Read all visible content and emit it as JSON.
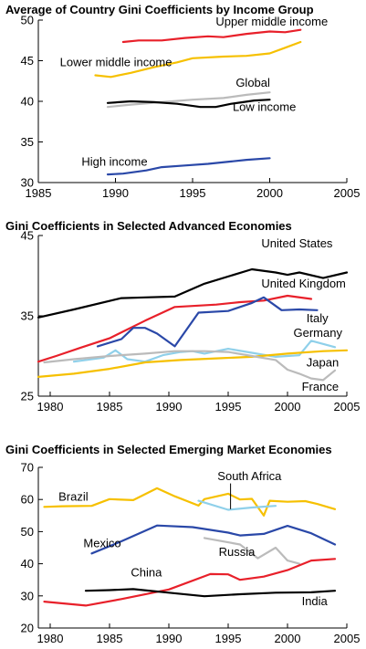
{
  "chart_data": [
    {
      "type": "line",
      "title": "Average of Country Gini Coefficients by Income Group",
      "xlim": [
        1985,
        2005
      ],
      "ylim": [
        30,
        50
      ],
      "xticks": [
        1985,
        1990,
        1995,
        2000,
        2005
      ],
      "yticks": [
        30,
        35,
        40,
        45,
        50
      ],
      "series": [
        {
          "name": "Upper middle income",
          "color": "#e8202a",
          "points": [
            [
              1990.5,
              47.3
            ],
            [
              1991.5,
              47.5
            ],
            [
              1993,
              47.5
            ],
            [
              1994.5,
              47.8
            ],
            [
              1996,
              48.0
            ],
            [
              1997,
              47.9
            ],
            [
              1998.5,
              48.3
            ],
            [
              2000,
              48.6
            ],
            [
              2001,
              48.5
            ],
            [
              2002,
              48.8
            ]
          ]
        },
        {
          "name": "Lower middle income",
          "color": "#f6c000",
          "points": [
            [
              1988.7,
              43.2
            ],
            [
              1989.7,
              43.0
            ],
            [
              1991,
              43.5
            ],
            [
              1992.5,
              44.2
            ],
            [
              1994,
              44.8
            ],
            [
              1995,
              45.3
            ],
            [
              1997,
              45.5
            ],
            [
              1998.5,
              45.6
            ],
            [
              2000,
              45.9
            ],
            [
              2001,
              46.6
            ],
            [
              2002,
              47.3
            ]
          ]
        },
        {
          "name": "Global",
          "color": "#bbbbbb",
          "points": [
            [
              1989.5,
              39.3
            ],
            [
              1991,
              39.6
            ],
            [
              1993,
              39.9
            ],
            [
              1995,
              40.2
            ],
            [
              1997,
              40.4
            ],
            [
              1998.5,
              40.8
            ],
            [
              2000,
              41.1
            ]
          ]
        },
        {
          "name": "Low income",
          "color": "#000000",
          "points": [
            [
              1989.5,
              39.8
            ],
            [
              1991,
              40.0
            ],
            [
              1992.5,
              39.9
            ],
            [
              1994,
              39.7
            ],
            [
              1995.5,
              39.3
            ],
            [
              1996.5,
              39.3
            ],
            [
              1997.5,
              39.7
            ],
            [
              1999,
              40.1
            ],
            [
              2000,
              40.2
            ]
          ]
        },
        {
          "name": "High income",
          "color": "#2a48a8",
          "points": [
            [
              1989.5,
              31.0
            ],
            [
              1990.5,
              31.1
            ],
            [
              1992,
              31.5
            ],
            [
              1993,
              31.9
            ],
            [
              1994.5,
              32.1
            ],
            [
              1996,
              32.3
            ],
            [
              1997.5,
              32.6
            ],
            [
              1998.5,
              32.8
            ],
            [
              2000,
              33.0
            ]
          ]
        }
      ],
      "labels": [
        {
          "series": "Upper middle income",
          "text": "Upper middle income",
          "x": 1996.5,
          "y": 49.3
        },
        {
          "series": "Lower middle income",
          "text": "Lower middle income",
          "x": 1986.4,
          "y": 44.3
        },
        {
          "series": "Global",
          "text": "Global",
          "x": 1997.8,
          "y": 41.8
        },
        {
          "series": "Low income",
          "text": "Low income",
          "x": 1997.6,
          "y": 38.8
        },
        {
          "series": "High income",
          "text": "High income",
          "x": 1987.8,
          "y": 32.1
        }
      ]
    },
    {
      "type": "line",
      "title": "Gini Coefficients in Selected Advanced Economies",
      "xlim": [
        1979,
        2005
      ],
      "ylim": [
        25,
        45
      ],
      "xticks": [
        1980,
        1985,
        1990,
        1995,
        2000,
        2005
      ],
      "yticks": [
        25,
        35,
        45
      ],
      "series": [
        {
          "name": "United States",
          "color": "#000000",
          "points": [
            [
              1979,
              34.8
            ],
            [
              1982,
              35.8
            ],
            [
              1986,
              37.2
            ],
            [
              1988,
              37.3
            ],
            [
              1990.5,
              37.4
            ],
            [
              1993,
              39.0
            ],
            [
              1997,
              40.8
            ],
            [
              1999,
              40.4
            ],
            [
              2000,
              40.1
            ],
            [
              2001,
              40.4
            ],
            [
              2003,
              39.7
            ],
            [
              2005,
              40.4
            ]
          ]
        },
        {
          "name": "United Kingdom",
          "color": "#e8202a",
          "points": [
            [
              1979,
              29.3
            ],
            [
              1980.5,
              30.0
            ],
            [
              1982.5,
              31.0
            ],
            [
              1985,
              32.2
            ],
            [
              1988,
              34.4
            ],
            [
              1990.5,
              36.1
            ],
            [
              1994,
              36.4
            ],
            [
              1996,
              36.7
            ],
            [
              1998,
              36.9
            ],
            [
              2000,
              37.5
            ],
            [
              2002,
              37.1
            ]
          ]
        },
        {
          "name": "Italy",
          "color": "#2a48a8",
          "points": [
            [
              1984,
              31.2
            ],
            [
              1986,
              32.1
            ],
            [
              1987,
              33.5
            ],
            [
              1988,
              33.5
            ],
            [
              1989,
              32.8
            ],
            [
              1990.5,
              31.2
            ],
            [
              1992.5,
              35.4
            ],
            [
              1995,
              35.6
            ],
            [
              1997,
              36.6
            ],
            [
              1998,
              37.3
            ],
            [
              1999.5,
              35.7
            ],
            [
              2001,
              35.8
            ],
            [
              2002.5,
              35.7
            ]
          ]
        },
        {
          "name": "Germany",
          "color": "#8fd0ea",
          "points": [
            [
              1982,
              29.3
            ],
            [
              1984.5,
              29.8
            ],
            [
              1985.5,
              30.7
            ],
            [
              1986.5,
              29.6
            ],
            [
              1988,
              29.3
            ],
            [
              1989.5,
              30.1
            ],
            [
              1991,
              30.5
            ],
            [
              1992,
              30.6
            ],
            [
              1993,
              30.3
            ],
            [
              1995,
              30.9
            ],
            [
              1997,
              30.4
            ],
            [
              1999,
              29.9
            ],
            [
              2001,
              30.1
            ],
            [
              2002,
              31.9
            ],
            [
              2004,
              31.1
            ]
          ]
        },
        {
          "name": "Japan",
          "color": "#f6c000",
          "points": [
            [
              1979,
              27.4
            ],
            [
              1982,
              27.8
            ],
            [
              1985,
              28.4
            ],
            [
              1988,
              29.2
            ],
            [
              1991,
              29.5
            ],
            [
              1994,
              29.7
            ],
            [
              1997,
              29.9
            ],
            [
              2000,
              30.3
            ],
            [
              2003,
              30.6
            ],
            [
              2005,
              30.7
            ]
          ]
        },
        {
          "name": "France",
          "color": "#bbbbbb",
          "points": [
            [
              1979.5,
              29.2
            ],
            [
              1982,
              29.6
            ],
            [
              1985,
              30.0
            ],
            [
              1988,
              30.3
            ],
            [
              1990.5,
              30.6
            ],
            [
              1993,
              30.6
            ],
            [
              1995,
              30.5
            ],
            [
              1997,
              30.0
            ],
            [
              1999,
              29.5
            ],
            [
              2000,
              28.3
            ],
            [
              2001,
              27.8
            ],
            [
              2002,
              27.2
            ],
            [
              2003,
              27.0
            ],
            [
              2004,
              28.2
            ]
          ]
        }
      ],
      "labels": [
        {
          "series": "United States",
          "text": "United States",
          "x": 1997.8,
          "y": 43.5
        },
        {
          "series": "United Kingdom",
          "text": "United Kingdom",
          "x": 1997.8,
          "y": 38.5
        },
        {
          "series": "Italy",
          "text": "Italy",
          "x": 2001.6,
          "y": 34.2
        },
        {
          "series": "Germany",
          "text": "Germany",
          "x": 2000.5,
          "y": 32.4
        },
        {
          "series": "Japan",
          "text": "Japan",
          "x": 2001.6,
          "y": 28.7
        },
        {
          "series": "France",
          "text": "France",
          "x": 2001.2,
          "y": 25.7
        }
      ]
    },
    {
      "type": "line",
      "title": "Gini Coefficients in Selected Emerging Market Economies",
      "xlim": [
        1979,
        2005
      ],
      "ylim": [
        20,
        70
      ],
      "xticks": [
        1980,
        1985,
        1990,
        1995,
        2000,
        2005
      ],
      "yticks": [
        20,
        30,
        40,
        50,
        60,
        70
      ],
      "series": [
        {
          "name": "Brazil",
          "color": "#f6c000",
          "points": [
            [
              1979.5,
              57.7
            ],
            [
              1981,
              57.9
            ],
            [
              1983.5,
              58.0
            ],
            [
              1985,
              60.1
            ],
            [
              1987,
              59.8
            ],
            [
              1989,
              63.5
            ],
            [
              1990.5,
              61.0
            ],
            [
              1992.5,
              58.1
            ],
            [
              1993,
              60.1
            ],
            [
              1995,
              61.8
            ],
            [
              1996,
              60.0
            ],
            [
              1997,
              60.2
            ],
            [
              1998,
              55.0
            ],
            [
              1998.5,
              59.6
            ],
            [
              2000,
              59.3
            ],
            [
              2001.5,
              59.5
            ],
            [
              2002.5,
              58.6
            ],
            [
              2004,
              57.0
            ]
          ]
        },
        {
          "name": "South Africa",
          "color": "#8fd0ea",
          "points": [
            [
              1992.5,
              59.6
            ],
            [
              1995,
              56.8
            ],
            [
              1997,
              57.5
            ],
            [
              1999,
              58.0
            ]
          ]
        },
        {
          "name": "Mexico",
          "color": "#2a48a8",
          "points": [
            [
              1983.5,
              43.2
            ],
            [
              1986,
              47.0
            ],
            [
              1989,
              51.9
            ],
            [
              1992,
              51.4
            ],
            [
              1995,
              49.7
            ],
            [
              1996,
              48.8
            ],
            [
              1998,
              49.3
            ],
            [
              2000,
              51.8
            ],
            [
              2002,
              49.5
            ],
            [
              2004,
              46.0
            ]
          ]
        },
        {
          "name": "Russia",
          "color": "#bbbbbb",
          "points": [
            [
              1993,
              48.0
            ],
            [
              1996,
              46.0
            ],
            [
              1997.5,
              41.7
            ],
            [
              1999,
              45.0
            ],
            [
              2000,
              41.0
            ],
            [
              2001,
              40.0
            ]
          ]
        },
        {
          "name": "China",
          "color": "#e8202a",
          "points": [
            [
              1979.5,
              28.2
            ],
            [
              1983,
              27.0
            ],
            [
              1986,
              29.0
            ],
            [
              1990,
              32.0
            ],
            [
              1993.5,
              36.8
            ],
            [
              1995,
              36.7
            ],
            [
              1996,
              35.0
            ],
            [
              1998,
              36.0
            ],
            [
              2000,
              38.0
            ],
            [
              2002,
              41.0
            ],
            [
              2004,
              41.5
            ]
          ]
        },
        {
          "name": "India",
          "color": "#000000",
          "points": [
            [
              1983,
              31.6
            ],
            [
              1985,
              31.8
            ],
            [
              1987,
              32.1
            ],
            [
              1990,
              31.0
            ],
            [
              1993,
              29.9
            ],
            [
              1996,
              30.5
            ],
            [
              1999,
              31.0
            ],
            [
              2002,
              31.1
            ],
            [
              2004,
              31.6
            ]
          ]
        }
      ],
      "labels": [
        {
          "series": "Brazil",
          "text": "Brazil",
          "x": 1980.7,
          "y": 59.6
        },
        {
          "series": "South Africa",
          "text": "South Africa",
          "x": 1994.1,
          "y": 66.0
        },
        {
          "series": "Mexico",
          "text": "Mexico",
          "x": 1982.8,
          "y": 45.1
        },
        {
          "series": "Russia",
          "text": "Russia",
          "x": 1994.2,
          "y": 42.5
        },
        {
          "series": "China",
          "text": "China",
          "x": 1986.8,
          "y": 36.0
        },
        {
          "series": "India",
          "text": "India",
          "x": 2001.2,
          "y": 27.1
        }
      ],
      "annotations": [
        {
          "type": "leader",
          "from": [
            1995.2,
            65.0
          ],
          "to": [
            1995.2,
            57.0
          ]
        }
      ]
    }
  ]
}
